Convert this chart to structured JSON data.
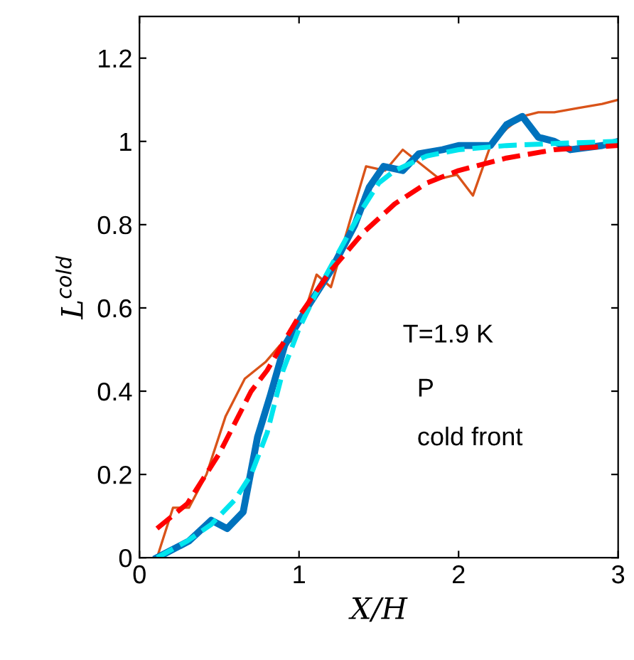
{
  "chart_data": {
    "type": "line",
    "xlabel": "X/H",
    "ylabel": "L$^{cold}$",
    "xlim": [
      0,
      3
    ],
    "ylim": [
      0,
      1.3
    ],
    "xticks": [
      0,
      1,
      2,
      3
    ],
    "yticks": [
      0,
      0.2,
      0.4,
      0.6,
      0.8,
      1,
      1.2
    ],
    "grid": false,
    "legend": false,
    "annotations": [
      "T=1.9 K",
      "P",
      "cold front"
    ],
    "series": [
      {
        "color": "#d95319",
        "line_style": "solid",
        "x": [
          0.11,
          0.21,
          0.31,
          0.42,
          0.54,
          0.66,
          0.79,
          0.88,
          0.95,
          1.06,
          1.11,
          1.2,
          1.32,
          1.42,
          1.54,
          1.65,
          1.88,
          1.99,
          2.09,
          2.2,
          2.3,
          2.4,
          2.5,
          2.6,
          2.75,
          2.9,
          3.0
        ],
        "values": [
          0.0,
          0.12,
          0.12,
          0.2,
          0.34,
          0.43,
          0.47,
          0.51,
          0.52,
          0.62,
          0.68,
          0.65,
          0.81,
          0.94,
          0.93,
          0.98,
          0.91,
          0.92,
          0.87,
          0.99,
          1.03,
          1.06,
          1.07,
          1.07,
          1.08,
          1.09,
          1.1
        ]
      },
      {
        "color": "#0072bd",
        "line_style": "solid",
        "x": [
          0.11,
          0.31,
          0.45,
          0.55,
          0.65,
          0.74,
          0.82,
          0.91,
          1.05,
          1.2,
          1.35,
          1.44,
          1.53,
          1.65,
          1.75,
          1.9,
          2.0,
          2.2,
          2.3,
          2.4,
          2.5,
          2.6,
          2.7,
          2.9,
          3.0
        ],
        "values": [
          0.0,
          0.04,
          0.09,
          0.07,
          0.11,
          0.29,
          0.39,
          0.51,
          0.6,
          0.69,
          0.8,
          0.89,
          0.94,
          0.93,
          0.97,
          0.98,
          0.99,
          0.99,
          1.04,
          1.06,
          1.01,
          1.0,
          0.98,
          0.99,
          1.0
        ]
      },
      {
        "color": "#00e5ee",
        "line_style": "dashed",
        "x": [
          0.11,
          0.3,
          0.45,
          0.6,
          0.7,
          0.8,
          0.9,
          1.0,
          1.1,
          1.2,
          1.3,
          1.4,
          1.5,
          1.6,
          1.8,
          2.0,
          2.3,
          2.6,
          3.0
        ],
        "values": [
          0.0,
          0.04,
          0.08,
          0.14,
          0.2,
          0.3,
          0.45,
          0.55,
          0.63,
          0.7,
          0.77,
          0.84,
          0.9,
          0.93,
          0.965,
          0.98,
          0.99,
          0.995,
          1.0
        ]
      },
      {
        "color": "#ff0000",
        "line_style": "dashed",
        "x": [
          0.11,
          0.3,
          0.5,
          0.7,
          0.8,
          1.0,
          1.2,
          1.4,
          1.6,
          1.8,
          2.0,
          2.3,
          2.6,
          3.0
        ],
        "values": [
          0.07,
          0.13,
          0.25,
          0.4,
          0.45,
          0.58,
          0.69,
          0.78,
          0.85,
          0.9,
          0.93,
          0.96,
          0.98,
          0.99
        ]
      }
    ]
  }
}
